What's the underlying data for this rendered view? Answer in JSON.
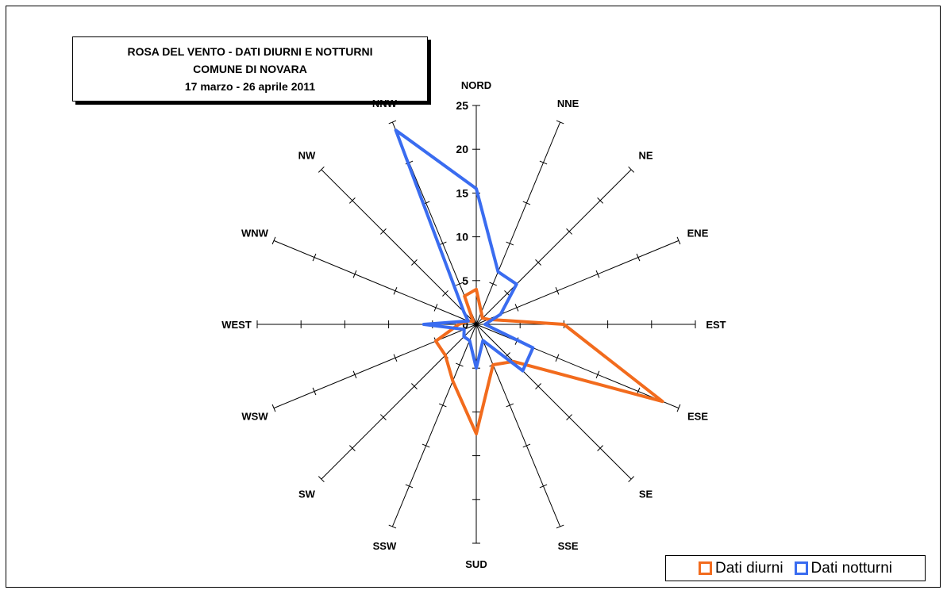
{
  "chart_data": {
    "type": "radar",
    "title": [
      "ROSA DEL VENTO - DATI DIURNI E NOTTURNI",
      "COMUNE DI NOVARA",
      "17 marzo - 26 aprile 2011"
    ],
    "directions": [
      "NORD",
      "NNE",
      "NE",
      "ENE",
      "EST",
      "ESE",
      "SE",
      "SSE",
      "SUD",
      "SSW",
      "SW",
      "WSW",
      "WEST",
      "WNW",
      "NW",
      "NNW"
    ],
    "radial_ticks": [
      "0",
      "5",
      "10",
      "15",
      "20",
      "25"
    ],
    "rlim": [
      0,
      25
    ],
    "series": [
      {
        "name": "Dati diurni",
        "color": "#f26b1d",
        "values": [
          4.0,
          1.5,
          1.0,
          1.5,
          10.0,
          23.0,
          6.0,
          5.0,
          12.5,
          7.0,
          5.0,
          5.0,
          2.0,
          1.0,
          0.5,
          3.5
        ]
      },
      {
        "name": "Dati notturni",
        "color": "#3a6cf0",
        "values": [
          15.5,
          6.5,
          6.5,
          3.0,
          1.0,
          7.0,
          7.5,
          2.0,
          5.0,
          2.0,
          2.0,
          1.5,
          6.0,
          1.0,
          2.0,
          24.0
        ]
      }
    ],
    "grid": false,
    "legend_position": "bottom-right"
  }
}
